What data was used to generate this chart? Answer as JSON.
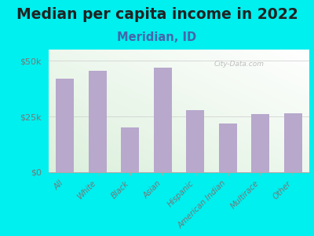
{
  "title": "Median per capita income in 2022",
  "subtitle": "Meridian, ID",
  "categories": [
    "All",
    "White",
    "Black",
    "Asian",
    "Hispanic",
    "American Indian",
    "Multirace",
    "Other"
  ],
  "values": [
    42000,
    45500,
    20000,
    47000,
    28000,
    22000,
    26000,
    26500
  ],
  "bar_color": "#b8a8cc",
  "background_outer": "#00efef",
  "title_color": "#222222",
  "subtitle_color": "#4466aa",
  "axis_label_color": "#777777",
  "ytick_labels": [
    "$0",
    "$25k",
    "$50k"
  ],
  "ytick_values": [
    0,
    25000,
    50000
  ],
  "ylim": [
    0,
    55000
  ],
  "watermark": "City-Data.com",
  "title_fontsize": 13.5,
  "subtitle_fontsize": 10.5
}
